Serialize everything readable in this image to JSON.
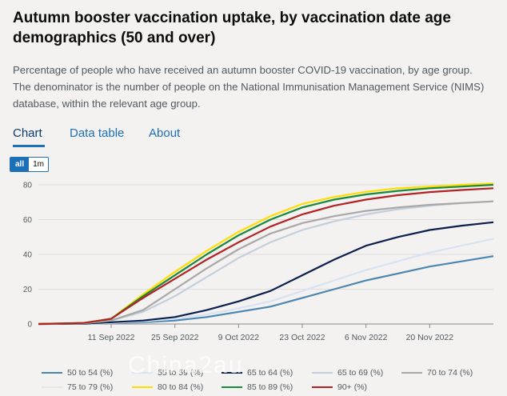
{
  "header": {
    "title": "Autumn booster vaccination uptake, by vaccination date age demographics (50 and over)",
    "description": "Percentage of people who have received an autumn booster COVID-19 vaccination, by age group. The denominator is the number of people on the National Immunisation Management Service (NIMS) database, within the relevant age group."
  },
  "tabs": [
    {
      "label": "Chart",
      "active": true
    },
    {
      "label": "Data table",
      "active": false
    },
    {
      "label": "About",
      "active": false
    }
  ],
  "range_buttons": [
    {
      "label": "all",
      "active": true
    },
    {
      "label": "1m",
      "active": false
    }
  ],
  "watermark": "China2au",
  "chart_data": {
    "type": "line",
    "title": "",
    "xlabel": "",
    "ylabel": "",
    "ylim": [
      0,
      80
    ],
    "yticks": [
      0,
      20,
      40,
      60,
      80
    ],
    "xlim": [
      "2022-08-26",
      "2022-12-04"
    ],
    "xticks": [
      {
        "date": "2022-09-11",
        "label": "11 Sep 2022"
      },
      {
        "date": "2022-09-25",
        "label": "25 Sep 2022"
      },
      {
        "date": "2022-10-09",
        "label": "9 Oct 2022"
      },
      {
        "date": "2022-10-23",
        "label": "23 Oct 2022"
      },
      {
        "date": "2022-11-06",
        "label": "6 Nov 2022"
      },
      {
        "date": "2022-11-20",
        "label": "20 Nov 2022"
      }
    ],
    "grid": true,
    "legend": "bottom",
    "series": [
      {
        "name": "50 to 54 (%)",
        "color": "#4a86b0",
        "points": [
          [
            "2022-08-26",
            0
          ],
          [
            "2022-09-05",
            0.2
          ],
          [
            "2022-09-11",
            0.5
          ],
          [
            "2022-09-18",
            1
          ],
          [
            "2022-09-25",
            2
          ],
          [
            "2022-10-02",
            4
          ],
          [
            "2022-10-09",
            7
          ],
          [
            "2022-10-16",
            10
          ],
          [
            "2022-10-23",
            15
          ],
          [
            "2022-10-30",
            20
          ],
          [
            "2022-11-06",
            25
          ],
          [
            "2022-11-13",
            29
          ],
          [
            "2022-11-20",
            33
          ],
          [
            "2022-11-27",
            36
          ],
          [
            "2022-12-04",
            39
          ]
        ]
      },
      {
        "name": "55 to 59 (%)",
        "color": "#d7e3f2",
        "points": [
          [
            "2022-08-26",
            0
          ],
          [
            "2022-09-05",
            0.2
          ],
          [
            "2022-09-11",
            0.6
          ],
          [
            "2022-09-18",
            1.5
          ],
          [
            "2022-09-25",
            3
          ],
          [
            "2022-10-02",
            5.5
          ],
          [
            "2022-10-09",
            9
          ],
          [
            "2022-10-16",
            13
          ],
          [
            "2022-10-23",
            19
          ],
          [
            "2022-10-30",
            25
          ],
          [
            "2022-11-06",
            31
          ],
          [
            "2022-11-13",
            36
          ],
          [
            "2022-11-20",
            41
          ],
          [
            "2022-11-27",
            45
          ],
          [
            "2022-12-04",
            49
          ]
        ]
      },
      {
        "name": "65 to 64 (%)",
        "color": "#0b1f4f",
        "points": [
          [
            "2022-08-26",
            0
          ],
          [
            "2022-09-05",
            0.2
          ],
          [
            "2022-09-11",
            1
          ],
          [
            "2022-09-18",
            2
          ],
          [
            "2022-09-25",
            4
          ],
          [
            "2022-10-02",
            8
          ],
          [
            "2022-10-09",
            13
          ],
          [
            "2022-10-16",
            19
          ],
          [
            "2022-10-23",
            28
          ],
          [
            "2022-10-30",
            37
          ],
          [
            "2022-11-06",
            45
          ],
          [
            "2022-11-13",
            50
          ],
          [
            "2022-11-20",
            54
          ],
          [
            "2022-11-27",
            56.5
          ],
          [
            "2022-12-04",
            58.5
          ]
        ]
      },
      {
        "name": "65 to 69 (%)",
        "color": "#c4cfdc",
        "points": [
          [
            "2022-08-26",
            0
          ],
          [
            "2022-09-05",
            0.4
          ],
          [
            "2022-09-11",
            2
          ],
          [
            "2022-09-18",
            7
          ],
          [
            "2022-09-25",
            16
          ],
          [
            "2022-10-02",
            27
          ],
          [
            "2022-10-09",
            38
          ],
          [
            "2022-10-16",
            47
          ],
          [
            "2022-10-23",
            54
          ],
          [
            "2022-10-30",
            59
          ],
          [
            "2022-11-06",
            63
          ],
          [
            "2022-11-13",
            66
          ],
          [
            "2022-11-20",
            68
          ],
          [
            "2022-11-27",
            69.5
          ],
          [
            "2022-12-04",
            70.5
          ]
        ]
      },
      {
        "name": "70 to 74 (%)",
        "color": "#a8a8a8",
        "points": [
          [
            "2022-08-26",
            0
          ],
          [
            "2022-09-05",
            0.5
          ],
          [
            "2022-09-11",
            2
          ],
          [
            "2022-09-18",
            8
          ],
          [
            "2022-09-25",
            20
          ],
          [
            "2022-10-02",
            32
          ],
          [
            "2022-10-09",
            43
          ],
          [
            "2022-10-16",
            52
          ],
          [
            "2022-10-23",
            58
          ],
          [
            "2022-10-30",
            62
          ],
          [
            "2022-11-06",
            65
          ],
          [
            "2022-11-13",
            67
          ],
          [
            "2022-11-20",
            68.5
          ],
          [
            "2022-11-27",
            69.5
          ],
          [
            "2022-12-04",
            70.5
          ]
        ]
      },
      {
        "name": "75 to 79 (%)",
        "color": "#e6e6e6",
        "points": [
          [
            "2022-08-26",
            0
          ],
          [
            "2022-09-05",
            0.6
          ],
          [
            "2022-09-11",
            3
          ],
          [
            "2022-09-18",
            15
          ],
          [
            "2022-09-25",
            28
          ],
          [
            "2022-10-02",
            40
          ],
          [
            "2022-10-09",
            51
          ],
          [
            "2022-10-16",
            60
          ],
          [
            "2022-10-23",
            67
          ],
          [
            "2022-10-30",
            71.5
          ],
          [
            "2022-11-06",
            74.5
          ],
          [
            "2022-11-13",
            76.5
          ],
          [
            "2022-11-20",
            78
          ],
          [
            "2022-11-27",
            79
          ],
          [
            "2022-12-04",
            80
          ]
        ]
      },
      {
        "name": "80 to 84 (%)",
        "color": "#ffdd00",
        "points": [
          [
            "2022-08-26",
            0
          ],
          [
            "2022-09-05",
            0.6
          ],
          [
            "2022-09-11",
            3
          ],
          [
            "2022-09-18",
            17
          ],
          [
            "2022-09-25",
            30
          ],
          [
            "2022-10-02",
            42
          ],
          [
            "2022-10-09",
            53
          ],
          [
            "2022-10-16",
            62
          ],
          [
            "2022-10-23",
            69
          ],
          [
            "2022-10-30",
            73
          ],
          [
            "2022-11-06",
            76
          ],
          [
            "2022-11-13",
            78
          ],
          [
            "2022-11-20",
            79
          ],
          [
            "2022-11-27",
            80
          ],
          [
            "2022-12-04",
            80.8
          ]
        ]
      },
      {
        "name": "85 to 89 (%)",
        "color": "#1a8a3a",
        "points": [
          [
            "2022-08-26",
            0
          ],
          [
            "2022-09-05",
            0.6
          ],
          [
            "2022-09-11",
            3
          ],
          [
            "2022-09-18",
            16
          ],
          [
            "2022-09-25",
            28
          ],
          [
            "2022-10-02",
            40
          ],
          [
            "2022-10-09",
            51
          ],
          [
            "2022-10-16",
            60
          ],
          [
            "2022-10-23",
            67
          ],
          [
            "2022-10-30",
            71.5
          ],
          [
            "2022-11-06",
            74.5
          ],
          [
            "2022-11-13",
            76.5
          ],
          [
            "2022-11-20",
            78
          ],
          [
            "2022-11-27",
            79
          ],
          [
            "2022-12-04",
            80
          ]
        ]
      },
      {
        "name": "90+ (%)",
        "color": "#b22222",
        "points": [
          [
            "2022-08-26",
            0
          ],
          [
            "2022-09-05",
            0.6
          ],
          [
            "2022-09-11",
            3
          ],
          [
            "2022-09-18",
            15
          ],
          [
            "2022-09-25",
            26
          ],
          [
            "2022-10-02",
            37
          ],
          [
            "2022-10-09",
            47
          ],
          [
            "2022-10-16",
            56
          ],
          [
            "2022-10-23",
            63
          ],
          [
            "2022-10-30",
            68
          ],
          [
            "2022-11-06",
            71.5
          ],
          [
            "2022-11-13",
            74
          ],
          [
            "2022-11-20",
            75.8
          ],
          [
            "2022-11-27",
            77
          ],
          [
            "2022-12-04",
            78
          ]
        ]
      }
    ]
  }
}
